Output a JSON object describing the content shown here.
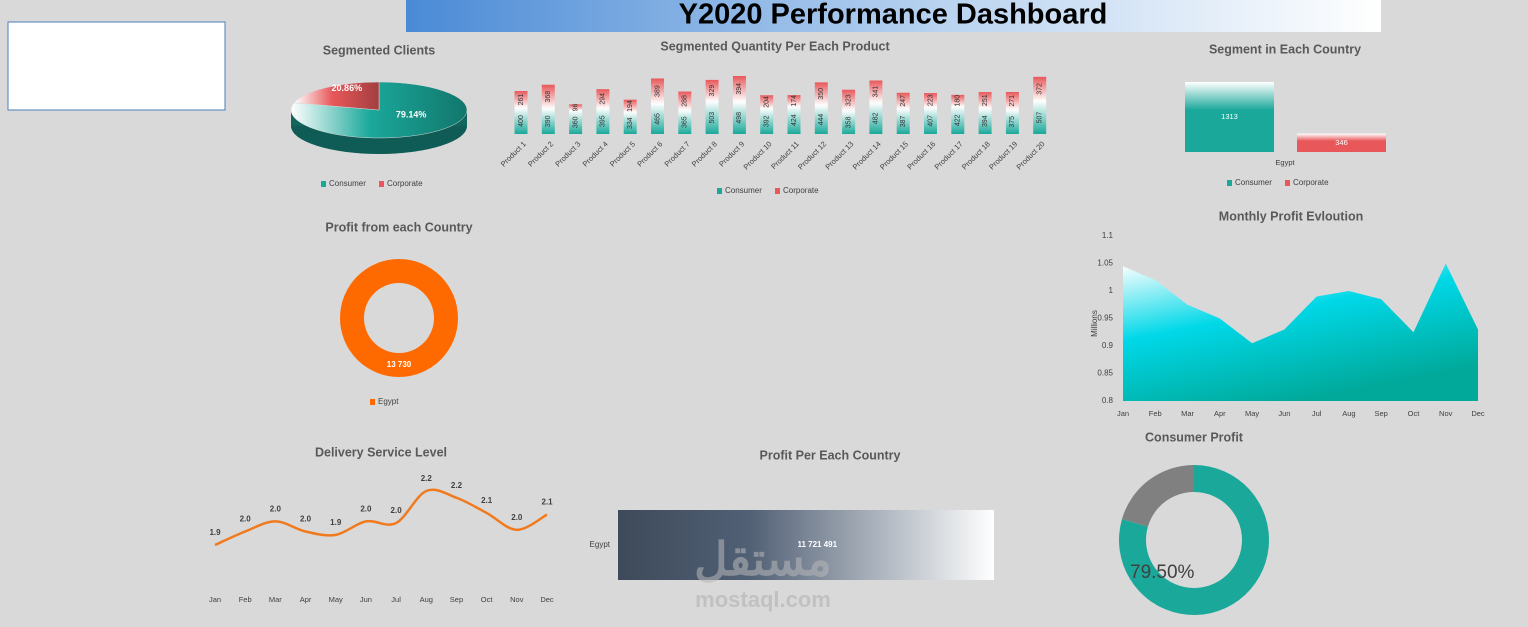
{
  "header": {
    "title": "Y2020 Performance Dashboard"
  },
  "watermark": {
    "logo": "مستقل",
    "url": "mostaql.com"
  },
  "chart_data": [
    {
      "type": "pie",
      "title": "Segmented Clients",
      "categories": [
        "Consumer",
        "Corporate"
      ],
      "values": [
        79.14,
        20.86
      ],
      "value_labels": [
        "79.14%",
        "20.86%"
      ],
      "colors": [
        "#1aa89a",
        "#e8585a"
      ],
      "legend": "bottom"
    },
    {
      "type": "stacked-bar",
      "title": "Segmented Quantity Per Each Product",
      "categories": [
        "Product 1",
        "Product 2",
        "Product 3",
        "Product 4",
        "Product 5",
        "Product 6",
        "Product 7",
        "Product 8",
        "Product 9",
        "Product 10",
        "Product 11",
        "Product 12",
        "Product 13",
        "Product 14",
        "Product 15",
        "Product 16",
        "Product 17",
        "Product 18",
        "Product 19",
        "Product 20"
      ],
      "series": [
        {
          "name": "Consumer",
          "color": "#1aa89a",
          "values": [
            400,
            390,
            360,
            395,
            334,
            465,
            365,
            503,
            498,
            392,
            424,
            444,
            358,
            482,
            387,
            407,
            422,
            394,
            375,
            507
          ]
        },
        {
          "name": "Corporate",
          "color": "#e8585a",
          "values": [
            261,
            368,
            96,
            294,
            194,
            389,
            288,
            329,
            394,
            204,
            174,
            350,
            323,
            341,
            247,
            223,
            180,
            251,
            271,
            372
          ]
        }
      ],
      "legend": "bottom"
    },
    {
      "type": "bar",
      "title": "Segment in Each Country",
      "categories": [
        "Egypt"
      ],
      "series": [
        {
          "name": "Consumer",
          "color": "#1aa89a",
          "values": [
            1313
          ]
        },
        {
          "name": "Corporate",
          "color": "#e8585a",
          "values": [
            346
          ]
        }
      ],
      "legend": "bottom"
    },
    {
      "type": "donut",
      "title": "Profit from each Country",
      "categories": [
        "Egypt"
      ],
      "values": [
        13730
      ],
      "value_labels": [
        "13 730"
      ],
      "colors": [
        "#ff6a00"
      ],
      "legend": "bottom"
    },
    {
      "type": "area",
      "title": "Monthly Profit Evloution",
      "categories": [
        "Jan",
        "Feb",
        "Mar",
        "Apr",
        "May",
        "Jun",
        "Jul",
        "Aug",
        "Sep",
        "Oct",
        "Nov",
        "Dec"
      ],
      "values": [
        1.045,
        1.02,
        0.975,
        0.95,
        0.905,
        0.93,
        0.99,
        1.0,
        0.985,
        0.925,
        1.05,
        0.93
      ],
      "y_label": "Millions",
      "ylim": [
        0.8,
        1.1
      ],
      "yticks": [
        0.8,
        0.85,
        0.9,
        0.95,
        1,
        1.05,
        1.1
      ],
      "color": "#00d8e8"
    },
    {
      "type": "line",
      "title": "Delivery Service Level",
      "categories": [
        "Jan",
        "Feb",
        "Mar",
        "Apr",
        "May",
        "Jun",
        "Jul",
        "Aug",
        "Sep",
        "Oct",
        "Nov",
        "Dec"
      ],
      "values": [
        1.88,
        1.96,
        2.02,
        1.96,
        1.94,
        2.02,
        2.01,
        2.2,
        2.16,
        2.07,
        1.97,
        2.06
      ],
      "value_labels": [
        "1.9",
        "2.0",
        "2.0",
        "2.0",
        "1.9",
        "2.0",
        "2.0",
        "2.2",
        "2.2",
        "2.1",
        "2.0",
        "2.1"
      ],
      "color": "#f07a1e"
    },
    {
      "type": "hbar",
      "title": "Profit Per Each Country",
      "categories": [
        "Egypt"
      ],
      "values": [
        11721491
      ],
      "value_labels": [
        "11 721 491"
      ],
      "color": "#3e4a5a"
    },
    {
      "type": "donut",
      "title": "Consumer Profit",
      "values": [
        79.5,
        20.5
      ],
      "value_labels": [
        "79.50%",
        null
      ],
      "colors": [
        "#1aa89a",
        "#808080"
      ]
    }
  ]
}
